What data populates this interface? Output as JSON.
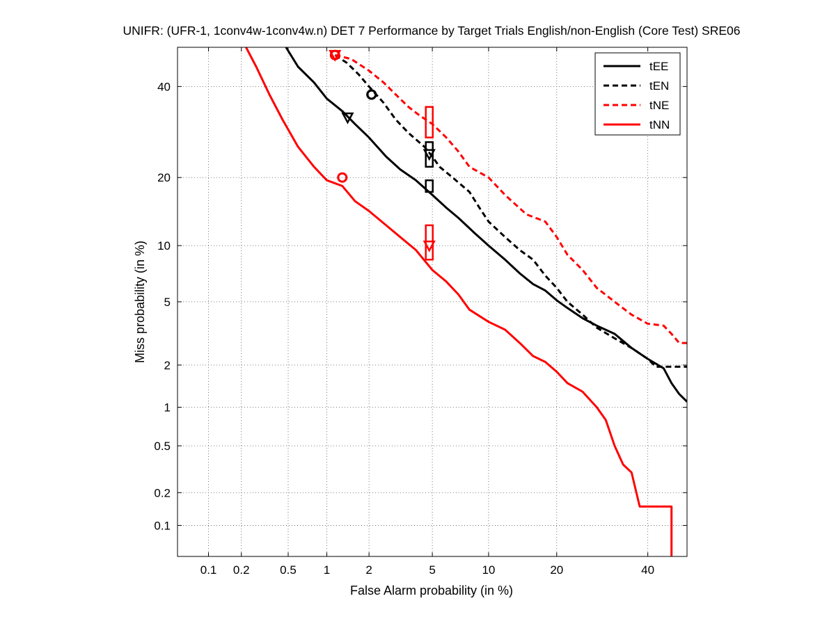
{
  "chart_data": {
    "type": "line",
    "title": "UNIFR: (UFR-1, 1conv4w-1conv4w.n) DET 7 Performance by Target Trials English/non-English (Core Test) SRE06",
    "xlabel": "False Alarm probability (in %)",
    "ylabel": "Miss probability (in %)",
    "x_scale": "probit",
    "y_scale": "probit",
    "xlim": [
      0.05,
      50
    ],
    "ylim": [
      0.05,
      50
    ],
    "xticks": [
      0.1,
      0.2,
      0.5,
      1,
      2,
      5,
      10,
      20,
      40
    ],
    "xtick_labels": [
      "0.1",
      "0.2",
      "0.5",
      "1",
      "2",
      "5",
      "10",
      "20",
      "40"
    ],
    "yticks": [
      0.1,
      0.2,
      0.5,
      1,
      2,
      5,
      10,
      20,
      40
    ],
    "ytick_labels": [
      "0.1",
      "0.2",
      "0.5",
      "1",
      "2",
      "5",
      "10",
      "20",
      "40"
    ],
    "grid": true,
    "legend_position": "top-right",
    "series": [
      {
        "name": "tEE",
        "color": "#000000",
        "dash": "solid",
        "points": [
          [
            0.48,
            50
          ],
          [
            0.6,
            45
          ],
          [
            0.8,
            41
          ],
          [
            1.0,
            37
          ],
          [
            1.3,
            34
          ],
          [
            1.6,
            31
          ],
          [
            2.0,
            28
          ],
          [
            2.6,
            24
          ],
          [
            3.2,
            21.5
          ],
          [
            4.0,
            19.5
          ],
          [
            5.0,
            17
          ],
          [
            6.0,
            15
          ],
          [
            7.0,
            13.5
          ],
          [
            8.5,
            11.5
          ],
          [
            10,
            10
          ],
          [
            12,
            8.5
          ],
          [
            14,
            7.2
          ],
          [
            16,
            6.3
          ],
          [
            18,
            5.8
          ],
          [
            20,
            5.1
          ],
          [
            22,
            4.6
          ],
          [
            25,
            4.0
          ],
          [
            28,
            3.6
          ],
          [
            32,
            3.2
          ],
          [
            36,
            2.6
          ],
          [
            40,
            2.2
          ],
          [
            44,
            1.9
          ],
          [
            46,
            1.5
          ],
          [
            48,
            1.25
          ],
          [
            50,
            1.1
          ]
        ],
        "actual_mark": [
          1.42,
          32.5
        ],
        "min_mark": [
          2.08,
          38
        ],
        "target_box": [
          4.8,
          17.5,
          19.5
        ]
      },
      {
        "name": "tEN",
        "color": "#000000",
        "dash": "dashed",
        "points": [
          [
            1.15,
            48
          ],
          [
            1.4,
            46
          ],
          [
            1.7,
            43
          ],
          [
            2.0,
            40
          ],
          [
            2.5,
            36
          ],
          [
            3.0,
            32
          ],
          [
            3.6,
            29
          ],
          [
            4.5,
            26
          ],
          [
            5.0,
            24
          ],
          [
            5.5,
            22
          ],
          [
            6.5,
            20
          ],
          [
            8,
            17.5
          ],
          [
            9,
            15
          ],
          [
            10,
            13
          ],
          [
            12,
            11
          ],
          [
            14,
            9.5
          ],
          [
            16,
            8.5
          ],
          [
            18,
            7
          ],
          [
            20,
            6
          ],
          [
            22,
            5
          ],
          [
            25,
            4.2
          ],
          [
            28,
            3.5
          ],
          [
            32,
            3.0
          ],
          [
            36,
            2.6
          ],
          [
            40,
            2.2
          ],
          [
            42,
            1.95
          ],
          [
            50,
            1.95
          ]
        ],
        "min_mark": [
          2.08,
          38
        ],
        "actual_mark": [
          4.8,
          24.5
        ],
        "target_box": [
          4.8,
          22,
          27
        ]
      },
      {
        "name": "tNE",
        "color": "#ff0000",
        "dash": "dashed",
        "points": [
          [
            1.15,
            48
          ],
          [
            1.5,
            47
          ],
          [
            2.0,
            44
          ],
          [
            2.5,
            41
          ],
          [
            3.0,
            38
          ],
          [
            3.6,
            35
          ],
          [
            4.2,
            33
          ],
          [
            5.0,
            31
          ],
          [
            6,
            28
          ],
          [
            7,
            25
          ],
          [
            8,
            22
          ],
          [
            10,
            20
          ],
          [
            12,
            17
          ],
          [
            15,
            14
          ],
          [
            18,
            13
          ],
          [
            20,
            11
          ],
          [
            22,
            9
          ],
          [
            25,
            7.5
          ],
          [
            28,
            6
          ],
          [
            32,
            5
          ],
          [
            36,
            4.2
          ],
          [
            40,
            3.7
          ],
          [
            44,
            3.6
          ],
          [
            46,
            3.2
          ],
          [
            48,
            2.8
          ],
          [
            50,
            2.8
          ]
        ],
        "actual_mark": [
          1.15,
          48
        ],
        "min_mark": [
          1.15,
          48
        ],
        "target_box": [
          4.8,
          28,
          35
        ]
      },
      {
        "name": "tNN",
        "color": "#ff0000",
        "dash": "solid",
        "points": [
          [
            0.22,
            50
          ],
          [
            0.27,
            45
          ],
          [
            0.35,
            38
          ],
          [
            0.45,
            32
          ],
          [
            0.6,
            26
          ],
          [
            0.8,
            22
          ],
          [
            1.0,
            19.5
          ],
          [
            1.3,
            18.5
          ],
          [
            1.6,
            16
          ],
          [
            2.0,
            14.5
          ],
          [
            2.6,
            12.5
          ],
          [
            3.2,
            11
          ],
          [
            4.0,
            9.5
          ],
          [
            5.0,
            7.5
          ],
          [
            6.0,
            6.5
          ],
          [
            7.0,
            5.5
          ],
          [
            8.0,
            4.5
          ],
          [
            10,
            3.8
          ],
          [
            12,
            3.4
          ],
          [
            14,
            2.8
          ],
          [
            16,
            2.3
          ],
          [
            18,
            2.1
          ],
          [
            20,
            1.8
          ],
          [
            22,
            1.5
          ],
          [
            25,
            1.3
          ],
          [
            28,
            1.0
          ],
          [
            30,
            0.8
          ],
          [
            32,
            0.5
          ],
          [
            34,
            0.35
          ],
          [
            36,
            0.3
          ],
          [
            38,
            0.15
          ],
          [
            44,
            0.15
          ],
          [
            46,
            0.15
          ],
          [
            46,
            0.05
          ]
        ],
        "min_mark": [
          1.3,
          20
        ],
        "actual_mark": [
          4.8,
          10
        ],
        "target_box": [
          4.8,
          8.5,
          12.5
        ]
      }
    ]
  }
}
